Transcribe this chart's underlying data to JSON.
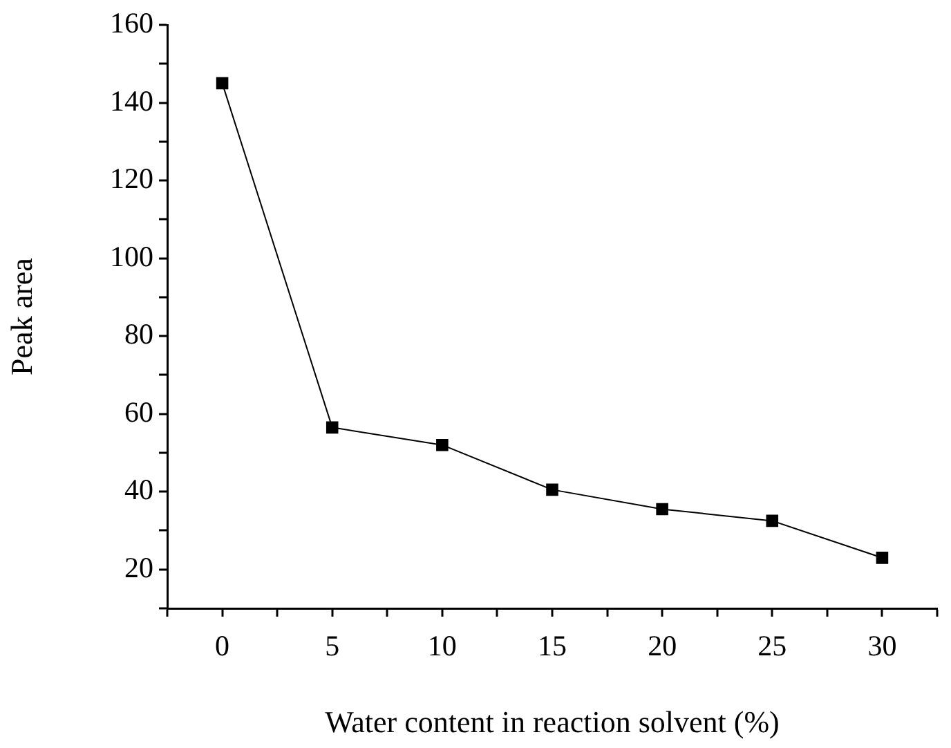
{
  "chart_data": {
    "type": "line",
    "xlabel": "Water content in reaction solvent (%)",
    "ylabel": "Peak area",
    "x": [
      0,
      5,
      10,
      15,
      20,
      25,
      30
    ],
    "series": [
      {
        "color": "#000000",
        "values": [
          145,
          56.5,
          52,
          40.5,
          35.5,
          32.5,
          23
        ]
      }
    ],
    "xlim": [
      -2.5,
      32.5
    ],
    "xticks": [
      {
        "value": -2.5,
        "label": null
      },
      0,
      {
        "value": 2.5,
        "label": null
      },
      5,
      {
        "value": 7.5,
        "label": null
      },
      10,
      {
        "value": 12.5,
        "label": null
      },
      15,
      {
        "value": 17.5,
        "label": null
      },
      20,
      {
        "value": 22.5,
        "label": null
      },
      25,
      {
        "value": 27.5,
        "label": null
      },
      30,
      {
        "value": 32.5,
        "label": null
      }
    ],
    "ylim": [
      10,
      160
    ],
    "yticks": [
      {
        "value": 10,
        "label": null
      },
      20,
      {
        "value": 30,
        "label": null
      },
      40,
      {
        "value": 50,
        "label": null
      },
      60,
      {
        "value": 70,
        "label": null
      },
      80,
      {
        "value": 90,
        "label": null
      },
      100,
      {
        "value": 110,
        "label": null
      },
      120,
      {
        "value": 130,
        "label": null
      },
      140,
      {
        "value": 150,
        "label": null
      },
      160
    ],
    "marker": "square",
    "line_style": "solid",
    "grid": false,
    "legend": false
  }
}
